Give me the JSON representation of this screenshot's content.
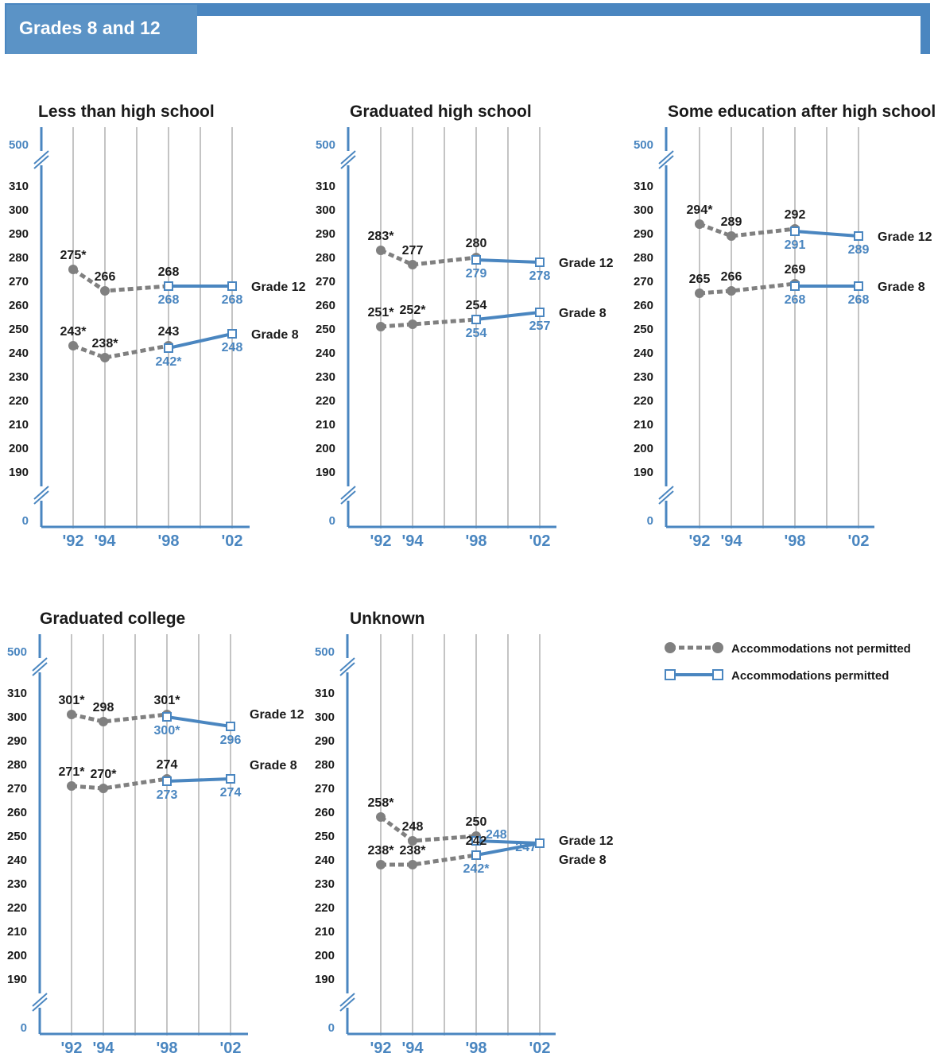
{
  "header": {
    "title": "Grades 8 and 12"
  },
  "colors": {
    "accent": "#4a86c0",
    "not_permitted": "#808080",
    "permitted": "#4a86c0",
    "text": "#1a1a1a"
  },
  "legend": {
    "not_permitted": "Accommodations not permitted",
    "permitted": "Accommodations permitted"
  },
  "axis": {
    "y_ticks": [
      "190",
      "200",
      "210",
      "220",
      "230",
      "240",
      "250",
      "260",
      "270",
      "280",
      "290",
      "300",
      "310"
    ],
    "y_break_top": "500",
    "y_break_bottom": "0",
    "x_ticks": [
      "'92",
      "'94",
      "'98",
      "'02"
    ]
  },
  "chart_data": [
    {
      "type": "line",
      "title": "Less than high school",
      "x": [
        1992,
        1994,
        1996,
        1998,
        2000,
        2002
      ],
      "ylim": [
        190,
        310
      ],
      "series": [
        {
          "name": "Grade 12",
          "not_permitted": [
            [
              1992,
              275,
              "275*"
            ],
            [
              1994,
              266,
              "266"
            ],
            [
              1998,
              268,
              "268"
            ]
          ],
          "permitted": [
            [
              1998,
              268,
              "268"
            ],
            [
              2002,
              268,
              "268"
            ]
          ]
        },
        {
          "name": "Grade 8",
          "not_permitted": [
            [
              1992,
              243,
              "243*"
            ],
            [
              1994,
              238,
              "238*"
            ],
            [
              1998,
              243,
              "243"
            ]
          ],
          "permitted": [
            [
              1998,
              242,
              "242*"
            ],
            [
              2002,
              248,
              "248"
            ]
          ]
        }
      ]
    },
    {
      "type": "line",
      "title": "Graduated high school",
      "x": [
        1992,
        1994,
        1996,
        1998,
        2000,
        2002
      ],
      "ylim": [
        190,
        310
      ],
      "series": [
        {
          "name": "Grade 12",
          "not_permitted": [
            [
              1992,
              283,
              "283*"
            ],
            [
              1994,
              277,
              "277"
            ],
            [
              1998,
              280,
              "280"
            ]
          ],
          "permitted": [
            [
              1998,
              279,
              "279"
            ],
            [
              2002,
              278,
              "278"
            ]
          ]
        },
        {
          "name": "Grade 8",
          "not_permitted": [
            [
              1992,
              251,
              "251*"
            ],
            [
              1994,
              252,
              "252*"
            ],
            [
              1998,
              254,
              "254"
            ]
          ],
          "permitted": [
            [
              1998,
              254,
              "254"
            ],
            [
              2002,
              257,
              "257"
            ]
          ]
        }
      ]
    },
    {
      "type": "line",
      "title": "Some education after high school",
      "x": [
        1992,
        1994,
        1996,
        1998,
        2000,
        2002
      ],
      "ylim": [
        190,
        310
      ],
      "series": [
        {
          "name": "Grade 12",
          "not_permitted": [
            [
              1992,
              294,
              "294*"
            ],
            [
              1994,
              289,
              "289"
            ],
            [
              1998,
              292,
              "292"
            ]
          ],
          "permitted": [
            [
              1998,
              291,
              "291"
            ],
            [
              2002,
              289,
              "289"
            ]
          ]
        },
        {
          "name": "Grade 8",
          "not_permitted": [
            [
              1992,
              265,
              "265"
            ],
            [
              1994,
              266,
              "266"
            ],
            [
              1998,
              269,
              "269"
            ]
          ],
          "permitted": [
            [
              1998,
              268,
              "268"
            ],
            [
              2002,
              268,
              "268"
            ]
          ]
        }
      ]
    },
    {
      "type": "line",
      "title": "Graduated college",
      "x": [
        1992,
        1994,
        1996,
        1998,
        2000,
        2002
      ],
      "ylim": [
        190,
        310
      ],
      "series": [
        {
          "name": "Grade 12",
          "not_permitted": [
            [
              1992,
              301,
              "301*"
            ],
            [
              1994,
              298,
              "298"
            ],
            [
              1998,
              301,
              "301*"
            ]
          ],
          "permitted": [
            [
              1998,
              300,
              "300*"
            ],
            [
              2002,
              296,
              "296"
            ]
          ]
        },
        {
          "name": "Grade 8",
          "not_permitted": [
            [
              1992,
              271,
              "271*"
            ],
            [
              1994,
              270,
              "270*"
            ],
            [
              1998,
              274,
              "274"
            ]
          ],
          "permitted": [
            [
              1998,
              273,
              "273"
            ],
            [
              2002,
              274,
              "274"
            ]
          ]
        }
      ]
    },
    {
      "type": "line",
      "title": "Unknown",
      "x": [
        1992,
        1994,
        1996,
        1998,
        2000,
        2002
      ],
      "ylim": [
        190,
        310
      ],
      "series": [
        {
          "name": "Grade 12",
          "not_permitted": [
            [
              1992,
              258,
              "258*"
            ],
            [
              1994,
              248,
              "248"
            ],
            [
              1998,
              250,
              "250"
            ]
          ],
          "permitted": [
            [
              1998,
              248,
              "248"
            ],
            [
              2002,
              247,
              ""
            ]
          ]
        },
        {
          "name": "Grade 8",
          "not_permitted": [
            [
              1992,
              238,
              "238*"
            ],
            [
              1994,
              238,
              "238*"
            ],
            [
              1998,
              242,
              "242"
            ]
          ],
          "permitted": [
            [
              1998,
              242,
              "242*"
            ],
            [
              2002,
              247,
              "247"
            ]
          ]
        }
      ]
    }
  ]
}
